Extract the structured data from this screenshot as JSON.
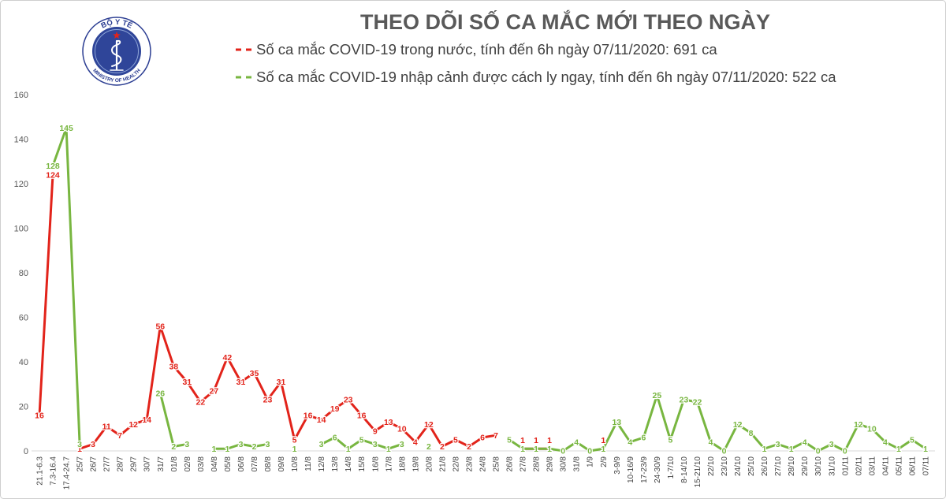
{
  "logo": {
    "top_text": "BỘ Y TẾ",
    "bottom_text": "MINISTRY OF HEALTH"
  },
  "chart_data": {
    "type": "line",
    "title": "THEO DÕI SỐ CA MẮC MỚI THEO NGÀY",
    "ylim": [
      0,
      160
    ],
    "yticks": [
      0,
      20,
      40,
      60,
      80,
      100,
      120,
      140,
      160
    ],
    "grid": false,
    "legend_position": "top",
    "data_labels": true,
    "categories": [
      "21.1-6.3",
      "7.3-16.4",
      "17.4-24.7",
      "25/7",
      "26/7",
      "27/7",
      "28/7",
      "29/7",
      "30/7",
      "31/7",
      "01/8",
      "02/8",
      "03/8",
      "04/8",
      "05/8",
      "06/8",
      "07/8",
      "08/8",
      "09/8",
      "10/8",
      "11/8",
      "12/8",
      "13/8",
      "14/8",
      "15/8",
      "16/8",
      "17/8",
      "18/8",
      "19/8",
      "20/8",
      "21/8",
      "22/8",
      "23/8",
      "24/8",
      "25/8",
      "26/8",
      "27/8",
      "28/8",
      "29/8",
      "30/8",
      "31/8",
      "1/9",
      "2/9",
      "3-9/9",
      "10-16/9",
      "17-23/9",
      "24-30/9",
      "1-7/10",
      "8-14/10",
      "15-21/10",
      "22/10",
      "23/10",
      "24/10",
      "25/10",
      "26/10",
      "27/10",
      "28/10",
      "29/10",
      "30/10",
      "31/10",
      "01/11",
      "02/11",
      "03/11",
      "04/11",
      "05/11",
      "06/11",
      "07/11"
    ],
    "series": [
      {
        "name": "Số ca mắc COVID-19 trong nước, tính đến 6h ngày 07/11/2020: 691 ca",
        "color": "#e2231a",
        "values": [
          16,
          124,
          null,
          1,
          3,
          11,
          7,
          12,
          14,
          56,
          38,
          31,
          22,
          27,
          42,
          31,
          35,
          23,
          31,
          5,
          16,
          14,
          19,
          23,
          16,
          9,
          13,
          10,
          4,
          12,
          2,
          5,
          2,
          6,
          7,
          null,
          1,
          1,
          1,
          null,
          null,
          null,
          1,
          null,
          null,
          null,
          null,
          null,
          null,
          null,
          null,
          null,
          null,
          null,
          null,
          null,
          null,
          null,
          null,
          null,
          null,
          null,
          null,
          null,
          null,
          null,
          null
        ]
      },
      {
        "name": "Số ca mắc COVID-19 nhập cảnh được cách ly ngay, tính đến 6h ngày 07/11/2020: 522 ca",
        "color": "#78b640",
        "values": [
          null,
          128,
          145,
          3,
          null,
          null,
          null,
          null,
          null,
          26,
          2,
          3,
          null,
          1,
          1,
          3,
          2,
          3,
          null,
          1,
          null,
          3,
          6,
          1,
          5,
          3,
          1,
          3,
          null,
          2,
          null,
          null,
          null,
          null,
          null,
          5,
          1,
          1,
          1,
          0,
          4,
          0,
          1,
          13,
          4,
          6,
          25,
          5,
          23,
          22,
          4,
          0,
          12,
          8,
          1,
          3,
          1,
          4,
          0,
          3,
          0,
          12,
          10,
          4,
          1,
          5,
          1
        ]
      }
    ]
  }
}
